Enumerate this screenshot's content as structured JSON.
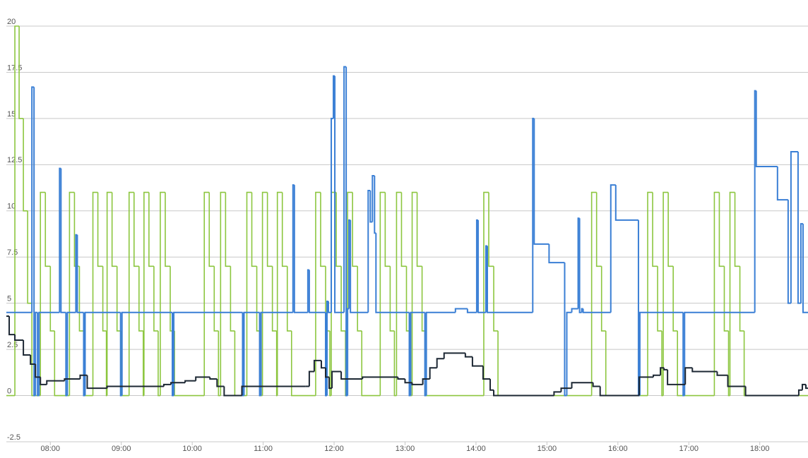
{
  "chart_data": {
    "type": "step-line",
    "xlim": [
      7.38,
      18.68
    ],
    "xticks": [
      {
        "value": 8,
        "label": "08:00"
      },
      {
        "value": 9,
        "label": "09:00"
      },
      {
        "value": 10,
        "label": "10:00"
      },
      {
        "value": 11,
        "label": "11:00"
      },
      {
        "value": 12,
        "label": "12:00"
      },
      {
        "value": 13,
        "label": "13:00"
      },
      {
        "value": 14,
        "label": "14:00"
      },
      {
        "value": 15,
        "label": "15:00"
      },
      {
        "value": 16,
        "label": "16:00"
      },
      {
        "value": 17,
        "label": "17:00"
      },
      {
        "value": 18,
        "label": "18:00"
      }
    ],
    "ylim": [
      -2.5,
      20
    ],
    "yticks": [
      -2.5,
      0,
      2.5,
      5,
      7.5,
      10,
      12.5,
      15,
      17.5,
      20
    ],
    "grid": true,
    "series": [
      {
        "color": "#8cc63f",
        "width": 1.6,
        "x": [
          7.38,
          7.5,
          7.56,
          7.62,
          7.68,
          7.74,
          7.86,
          7.93,
          8.0,
          8.06,
          8.27,
          8.34,
          8.41,
          8.47,
          8.6,
          8.67,
          8.74,
          8.79,
          8.8,
          8.87,
          8.94,
          9.0,
          9.11,
          9.18,
          9.25,
          9.31,
          9.32,
          9.39,
          9.46,
          9.52,
          9.55,
          9.62,
          9.69,
          9.75,
          10.17,
          10.24,
          10.31,
          10.37,
          10.4,
          10.47,
          10.54,
          10.6,
          10.77,
          10.84,
          10.91,
          10.97,
          10.99,
          11.06,
          11.13,
          11.19,
          11.2,
          11.27,
          11.34,
          11.4,
          11.74,
          11.81,
          11.88,
          11.94,
          11.96,
          12.03,
          12.1,
          12.16,
          12.19,
          12.26,
          12.33,
          12.39,
          12.65,
          12.72,
          12.79,
          12.85,
          12.88,
          12.95,
          13.02,
          13.08,
          13.1,
          13.17,
          13.24,
          13.3,
          14.11,
          14.18,
          14.25,
          14.31,
          15.63,
          15.7,
          15.77,
          15.83,
          16.42,
          16.49,
          16.56,
          16.62,
          16.64,
          16.71,
          16.78,
          16.84,
          17.36,
          17.43,
          17.5,
          17.56,
          17.58,
          17.65,
          17.72,
          17.78
        ],
        "values": [
          0,
          20,
          15,
          10,
          5,
          0,
          11,
          7,
          3.5,
          0,
          11,
          7,
          3.5,
          0,
          11,
          7,
          3.5,
          0,
          11,
          7,
          3.5,
          0,
          11,
          7,
          3.5,
          0,
          11,
          7,
          3.5,
          0,
          11,
          7,
          3.5,
          0,
          11,
          7,
          3.5,
          0,
          11,
          7,
          3.5,
          0,
          11,
          7,
          3.5,
          0,
          11,
          7,
          3.5,
          0,
          11,
          7,
          3.5,
          0,
          11,
          7,
          3.5,
          0,
          11,
          7,
          3.5,
          0,
          11,
          7,
          3.5,
          0,
          11,
          7,
          3.5,
          0,
          11,
          7,
          3.5,
          0,
          11,
          7,
          3.5,
          0,
          11,
          7,
          3.5,
          0,
          11,
          7,
          3.5,
          0,
          11,
          7,
          3.5,
          0,
          11,
          7,
          3.5,
          0,
          11,
          7,
          3.5,
          0,
          11,
          7,
          3.5,
          0
        ]
      },
      {
        "color": "#3a7fd5",
        "width": 2,
        "x": [
          7.38,
          7.74,
          7.77,
          7.79,
          7.82,
          7.84,
          8.13,
          8.15,
          8.22,
          8.24,
          8.36,
          8.38,
          8.47,
          8.49,
          8.99,
          9.01,
          9.72,
          9.74,
          10.71,
          10.73,
          10.95,
          10.97,
          11.42,
          11.44,
          11.63,
          11.65,
          11.88,
          11.9,
          11.92,
          11.96,
          11.99,
          12.01,
          12.14,
          12.17,
          12.19,
          12.21,
          12.23,
          12.48,
          12.51,
          12.54,
          12.57,
          12.59,
          13.06,
          13.08,
          13.28,
          13.3,
          13.71,
          13.88,
          14.01,
          14.03,
          14.14,
          14.16,
          14.8,
          14.82,
          15.03,
          15.25,
          15.28,
          15.35,
          15.44,
          15.46,
          15.49,
          15.51,
          15.9,
          15.97,
          16.29,
          16.31,
          16.92,
          16.94,
          17.93,
          17.95,
          18.25,
          18.4,
          18.44,
          18.54,
          18.58,
          18.61
        ],
        "values": [
          4.5,
          16.7,
          0,
          4.5,
          0,
          4.5,
          12.3,
          4.5,
          0,
          4.5,
          8.7,
          4.5,
          0,
          4.5,
          0,
          4.5,
          0,
          4.5,
          0,
          4.5,
          0,
          4.5,
          11.4,
          4.5,
          6.8,
          4.5,
          0,
          5.1,
          4.5,
          15,
          17.3,
          4.5,
          17.8,
          0,
          4.7,
          9.5,
          4.5,
          11.1,
          9.4,
          11.9,
          8.8,
          4.5,
          0,
          4.5,
          0,
          4.5,
          4.7,
          4.5,
          9.5,
          4.5,
          8.1,
          4.5,
          15,
          8.2,
          7.2,
          0,
          4.5,
          4.7,
          9.6,
          4.5,
          4.7,
          4.5,
          11.4,
          9.5,
          0,
          4.5,
          0,
          4.5,
          16.5,
          12.4,
          10.6,
          5,
          13.2,
          5,
          9.3,
          4.5
        ]
      },
      {
        "color": "#1c2733",
        "width": 2,
        "x": [
          7.38,
          7.42,
          7.5,
          7.62,
          7.72,
          7.79,
          7.86,
          7.95,
          8.2,
          8.42,
          8.52,
          8.8,
          9.6,
          9.7,
          9.9,
          10.05,
          10.25,
          10.35,
          10.45,
          10.7,
          11.6,
          11.65,
          11.72,
          11.82,
          11.88,
          11.93,
          11.97,
          12.1,
          12.4,
          12.9,
          13.0,
          13.1,
          13.25,
          13.35,
          13.45,
          13.55,
          13.85,
          13.95,
          14.1,
          14.2,
          14.25,
          15.1,
          15.2,
          15.35,
          15.65,
          15.75,
          16.3,
          16.5,
          16.6,
          16.65,
          16.7,
          16.95,
          17.05,
          17.4,
          17.55,
          17.8,
          18.55,
          18.6,
          18.65
        ],
        "values": [
          4.3,
          3.3,
          3.0,
          2.2,
          1.7,
          1.0,
          0.6,
          0.8,
          0.9,
          1.1,
          0.4,
          0.5,
          0.6,
          0.7,
          0.8,
          1.0,
          0.9,
          0.5,
          0,
          0.5,
          0.5,
          1.3,
          1.9,
          1.5,
          1.0,
          0.4,
          1.3,
          0.9,
          1.0,
          0.9,
          0.7,
          0.6,
          0.9,
          1.5,
          2.0,
          2.3,
          2.1,
          1.6,
          0.9,
          0.3,
          0,
          0.2,
          0.4,
          0.7,
          0.5,
          0,
          1.0,
          1.1,
          1.5,
          1.4,
          0.6,
          1.5,
          1.3,
          1.1,
          0.5,
          0,
          0.3,
          0.6,
          0.4
        ]
      }
    ]
  }
}
